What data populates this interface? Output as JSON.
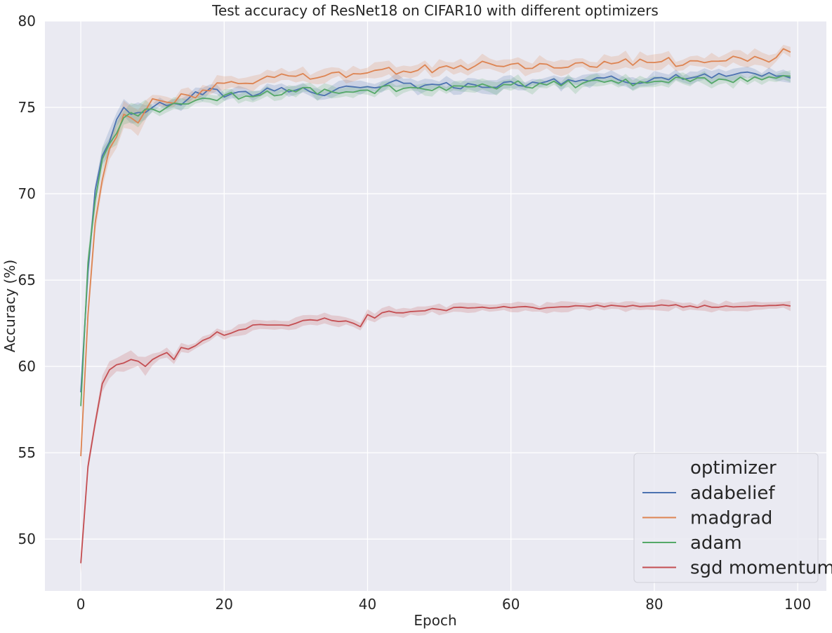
{
  "chart_data": {
    "type": "line",
    "title": "Test accuracy of ResNet18 on CIFAR10 with different optimizers",
    "xlabel": "Epoch",
    "ylabel": "Accuracy (%)",
    "xlim": [
      -5,
      104
    ],
    "ylim": [
      47,
      80
    ],
    "xticks": [
      0,
      20,
      40,
      60,
      80,
      100
    ],
    "yticks": [
      50,
      55,
      60,
      65,
      70,
      75,
      80
    ],
    "grid": true,
    "background": "#EAEAF2",
    "legend": {
      "title": "optimizer",
      "placement": "bottom-right"
    },
    "series": [
      {
        "name": "adabelief",
        "color": "#4C72B0",
        "knots": [
          [
            0,
            58.5
          ],
          [
            1,
            65.5
          ],
          [
            2,
            70.2
          ],
          [
            3,
            72.2
          ],
          [
            4,
            73
          ],
          [
            5,
            74.3
          ],
          [
            6,
            75
          ],
          [
            7,
            74.6
          ],
          [
            8,
            74.7
          ],
          [
            9,
            74.7
          ],
          [
            10,
            75
          ],
          [
            12,
            75.1
          ],
          [
            15,
            75.5
          ],
          [
            16,
            75.9
          ],
          [
            18,
            76.1
          ],
          [
            20,
            75.6
          ],
          [
            22,
            75.9
          ],
          [
            25,
            75.8
          ],
          [
            30,
            76
          ],
          [
            35,
            75.9
          ],
          [
            40,
            76.2
          ],
          [
            45,
            76.4
          ],
          [
            50,
            76.3
          ],
          [
            55,
            76.3
          ],
          [
            60,
            76.5
          ],
          [
            65,
            76.5
          ],
          [
            70,
            76.6
          ],
          [
            75,
            76.6
          ],
          [
            80,
            76.7
          ],
          [
            85,
            76.7
          ],
          [
            90,
            76.8
          ],
          [
            95,
            76.8
          ],
          [
            99,
            76.7
          ]
        ],
        "noise": 0.28,
        "band": 0.3
      },
      {
        "name": "madgrad",
        "color": "#DD8452",
        "knots": [
          [
            0,
            54.8
          ],
          [
            1,
            63
          ],
          [
            2,
            68.3
          ],
          [
            3,
            70.8
          ],
          [
            4,
            72.6
          ],
          [
            5,
            73.3
          ],
          [
            6,
            74.6
          ],
          [
            7,
            74.4
          ],
          [
            8,
            74.1
          ],
          [
            9,
            74.8
          ],
          [
            10,
            75.5
          ],
          [
            12,
            75.3
          ],
          [
            15,
            75.7
          ],
          [
            17,
            76
          ],
          [
            20,
            76.4
          ],
          [
            25,
            76.6
          ],
          [
            30,
            76.8
          ],
          [
            35,
            77
          ],
          [
            40,
            77
          ],
          [
            45,
            77.1
          ],
          [
            50,
            77.3
          ],
          [
            55,
            77.4
          ],
          [
            58,
            77.4
          ],
          [
            60,
            77.5
          ],
          [
            65,
            77.5
          ],
          [
            70,
            77.6
          ],
          [
            75,
            77.6
          ],
          [
            80,
            77.6
          ],
          [
            85,
            77.7
          ],
          [
            90,
            77.7
          ],
          [
            95,
            77.8
          ],
          [
            99,
            78.2
          ]
        ],
        "noise": 0.3,
        "band": 0.35
      },
      {
        "name": "adam",
        "color": "#55A868",
        "knots": [
          [
            0,
            57.7
          ],
          [
            1,
            66
          ],
          [
            2,
            69.6
          ],
          [
            3,
            72
          ],
          [
            4,
            72.9
          ],
          [
            5,
            73.5
          ],
          [
            6,
            74.4
          ],
          [
            7,
            74.7
          ],
          [
            8,
            74.5
          ],
          [
            9,
            74.9
          ],
          [
            10,
            74.9
          ],
          [
            12,
            75
          ],
          [
            15,
            75.2
          ],
          [
            18,
            75.5
          ],
          [
            20,
            75.7
          ],
          [
            25,
            75.7
          ],
          [
            30,
            75.9
          ],
          [
            35,
            75.9
          ],
          [
            40,
            76
          ],
          [
            45,
            76.1
          ],
          [
            50,
            76.2
          ],
          [
            55,
            76.2
          ],
          [
            60,
            76.3
          ],
          [
            65,
            76.3
          ],
          [
            70,
            76.4
          ],
          [
            75,
            76.4
          ],
          [
            80,
            76.5
          ],
          [
            85,
            76.5
          ],
          [
            90,
            76.6
          ],
          [
            95,
            76.6
          ],
          [
            99,
            76.8
          ]
        ],
        "noise": 0.25,
        "band": 0.28
      },
      {
        "name": "sgd momentum",
        "color": "#C44E52",
        "knots": [
          [
            0,
            48.6
          ],
          [
            1,
            54.2
          ],
          [
            2,
            56.7
          ],
          [
            3,
            59
          ],
          [
            4,
            59.8
          ],
          [
            5,
            60.1
          ],
          [
            6,
            60.2
          ],
          [
            7,
            60.4
          ],
          [
            8,
            60.3
          ],
          [
            9,
            60
          ],
          [
            10,
            60.4
          ],
          [
            12,
            60.8
          ],
          [
            13,
            60.4
          ],
          [
            14,
            61.1
          ],
          [
            15,
            61
          ],
          [
            17,
            61.5
          ],
          [
            19,
            62
          ],
          [
            20,
            61.8
          ],
          [
            22,
            62.1
          ],
          [
            24,
            62.4
          ],
          [
            26,
            62.4
          ],
          [
            28,
            62.4
          ],
          [
            30,
            62.5
          ],
          [
            32,
            62.7
          ],
          [
            34,
            62.8
          ],
          [
            36,
            62.6
          ],
          [
            38,
            62.5
          ],
          [
            39,
            62.3
          ],
          [
            40,
            63
          ],
          [
            41,
            62.8
          ],
          [
            43,
            63.2
          ],
          [
            45,
            63.1
          ],
          [
            47,
            63.2
          ],
          [
            50,
            63.3
          ],
          [
            55,
            63.4
          ],
          [
            60,
            63.4
          ],
          [
            65,
            63.4
          ],
          [
            70,
            63.5
          ],
          [
            75,
            63.5
          ],
          [
            80,
            63.5
          ],
          [
            85,
            63.5
          ],
          [
            90,
            63.5
          ],
          [
            95,
            63.5
          ],
          [
            99,
            63.5
          ]
        ],
        "noise": 0.1,
        "band": 0.25
      }
    ]
  }
}
